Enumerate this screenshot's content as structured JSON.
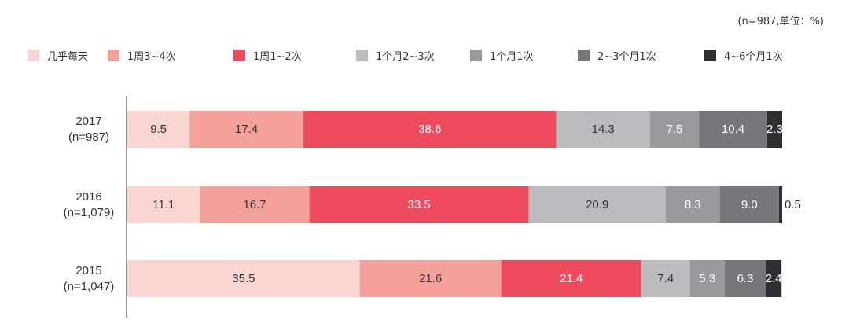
{
  "unit_note": "(n=987,单位：%)",
  "legend_colors": [
    "#fad6d3",
    "#f4a19c",
    "#ef4b5f",
    "#bcbbbd",
    "#9a999b",
    "#777679",
    "#2f2f31"
  ],
  "chart_data": {
    "type": "bar",
    "orientation": "horizontal",
    "stacked": true,
    "unit": "%",
    "categories": [
      {
        "year": "2017",
        "n": "(n=987)"
      },
      {
        "year": "2016",
        "n": "(n=1,079)"
      },
      {
        "year": "2015",
        "n": "(n=1,047)"
      }
    ],
    "series": [
      {
        "name": "几乎每天",
        "color": "#fad6d3",
        "values": [
          9.5,
          11.1,
          35.5
        ],
        "labels": [
          "9.5",
          "11.1",
          "35.5"
        ]
      },
      {
        "name": "1周3~4次",
        "color": "#f4a19c",
        "values": [
          17.4,
          16.7,
          21.6
        ],
        "labels": [
          "17.4",
          "16.7",
          "21.6"
        ]
      },
      {
        "name": "1周1~2次",
        "color": "#ef4b5f",
        "values": [
          38.6,
          33.5,
          21.4
        ],
        "labels": [
          "38.6",
          "33.5",
          "21.4"
        ]
      },
      {
        "name": "1个月2~3次",
        "color": "#bcbbbd",
        "values": [
          14.3,
          20.9,
          7.4
        ],
        "labels": [
          "14.3",
          "20.9",
          "7.4"
        ]
      },
      {
        "name": "1个月1次",
        "color": "#9a999b",
        "values": [
          7.5,
          8.3,
          5.3
        ],
        "labels": [
          "7.5",
          "8.3",
          "5.3"
        ]
      },
      {
        "name": "2~3个月1次",
        "color": "#777679",
        "values": [
          10.4,
          9.0,
          6.3
        ],
        "labels": [
          "10.4",
          "9.0",
          "6.3"
        ]
      },
      {
        "name": "4~6个月1次",
        "color": "#2f2f31",
        "values": [
          2.3,
          0.5,
          2.4
        ],
        "labels": [
          "2.3",
          "0.5",
          "2.4"
        ]
      }
    ],
    "xlim": [
      0,
      100
    ],
    "grid": false,
    "legend": "top"
  }
}
